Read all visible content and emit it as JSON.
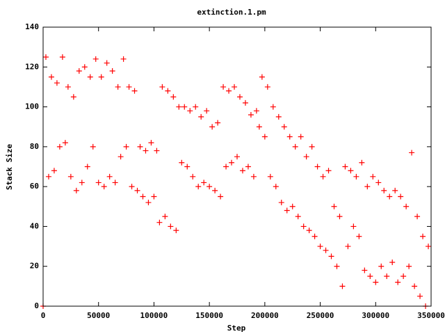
{
  "chart_data": {
    "type": "scatter",
    "title": "extinction.1.pm",
    "xlabel": "Step",
    "ylabel": "Stack Size",
    "color": "#ff0000",
    "marker": "+",
    "xlim": [
      0,
      350000
    ],
    "xticks": [
      0,
      50000,
      100000,
      150000,
      200000,
      250000,
      300000,
      350000
    ],
    "ylim": [
      0,
      140
    ],
    "yticks": [
      0,
      20,
      40,
      60,
      80,
      100,
      120,
      140
    ],
    "x": [
      0,
      2500,
      5000,
      7500,
      10000,
      12500,
      15000,
      17500,
      20000,
      22500,
      25000,
      27500,
      30000,
      32500,
      35000,
      37500,
      40000,
      42500,
      45000,
      47500,
      50000,
      52500,
      55000,
      57500,
      60000,
      62500,
      65000,
      67500,
      70000,
      72500,
      75000,
      77500,
      80000,
      82500,
      85000,
      87500,
      90000,
      92500,
      95000,
      97500,
      100000,
      102500,
      105000,
      107500,
      110000,
      112500,
      115000,
      117500,
      120000,
      122500,
      125000,
      127500,
      130000,
      132500,
      135000,
      137500,
      140000,
      142500,
      145000,
      147500,
      150000,
      152500,
      155000,
      157500,
      160000,
      162500,
      165000,
      167500,
      170000,
      172500,
      175000,
      177500,
      180000,
      182500,
      185000,
      187500,
      190000,
      192500,
      195000,
      197500,
      200000,
      202500,
      205000,
      207500,
      210000,
      212500,
      215000,
      217500,
      220000,
      222500,
      225000,
      227500,
      230000,
      232500,
      235000,
      237500,
      240000,
      242500,
      245000,
      247500,
      250000,
      252500,
      255000,
      257500,
      260000,
      262500,
      265000,
      267500,
      270000,
      272500,
      275000,
      277500,
      280000,
      282500,
      285000,
      287500,
      290000,
      292500,
      295000,
      297500,
      300000,
      302500,
      305000,
      307500,
      310000,
      312500,
      315000,
      317500,
      320000,
      322500,
      325000,
      327500,
      330000,
      332500,
      335000,
      337500,
      340000,
      342500,
      345000,
      347500
    ],
    "values": [
      0,
      125,
      65,
      115,
      68,
      112,
      80,
      125,
      82,
      110,
      65,
      105,
      58,
      118,
      62,
      120,
      70,
      115,
      80,
      124,
      62,
      115,
      60,
      122,
      65,
      118,
      62,
      110,
      75,
      124,
      80,
      110,
      60,
      108,
      58,
      80,
      55,
      78,
      52,
      82,
      55,
      78,
      42,
      110,
      45,
      108,
      40,
      105,
      38,
      100,
      72,
      100,
      70,
      98,
      65,
      100,
      60,
      95,
      62,
      98,
      60,
      90,
      58,
      92,
      55,
      110,
      70,
      108,
      72,
      110,
      75,
      105,
      68,
      102,
      70,
      96,
      65,
      98,
      90,
      115,
      85,
      110,
      65,
      100,
      60,
      95,
      52,
      90,
      48,
      85,
      50,
      80,
      45,
      85,
      40,
      75,
      38,
      80,
      35,
      70,
      30,
      65,
      28,
      68,
      25,
      50,
      20,
      45,
      10,
      70,
      30,
      68,
      40,
      65,
      35,
      72,
      18,
      60,
      15,
      65,
      12,
      62,
      20,
      58,
      15,
      55,
      22,
      58,
      12,
      55,
      15,
      50,
      20,
      77,
      10,
      45,
      5,
      35,
      0,
      30
    ]
  }
}
